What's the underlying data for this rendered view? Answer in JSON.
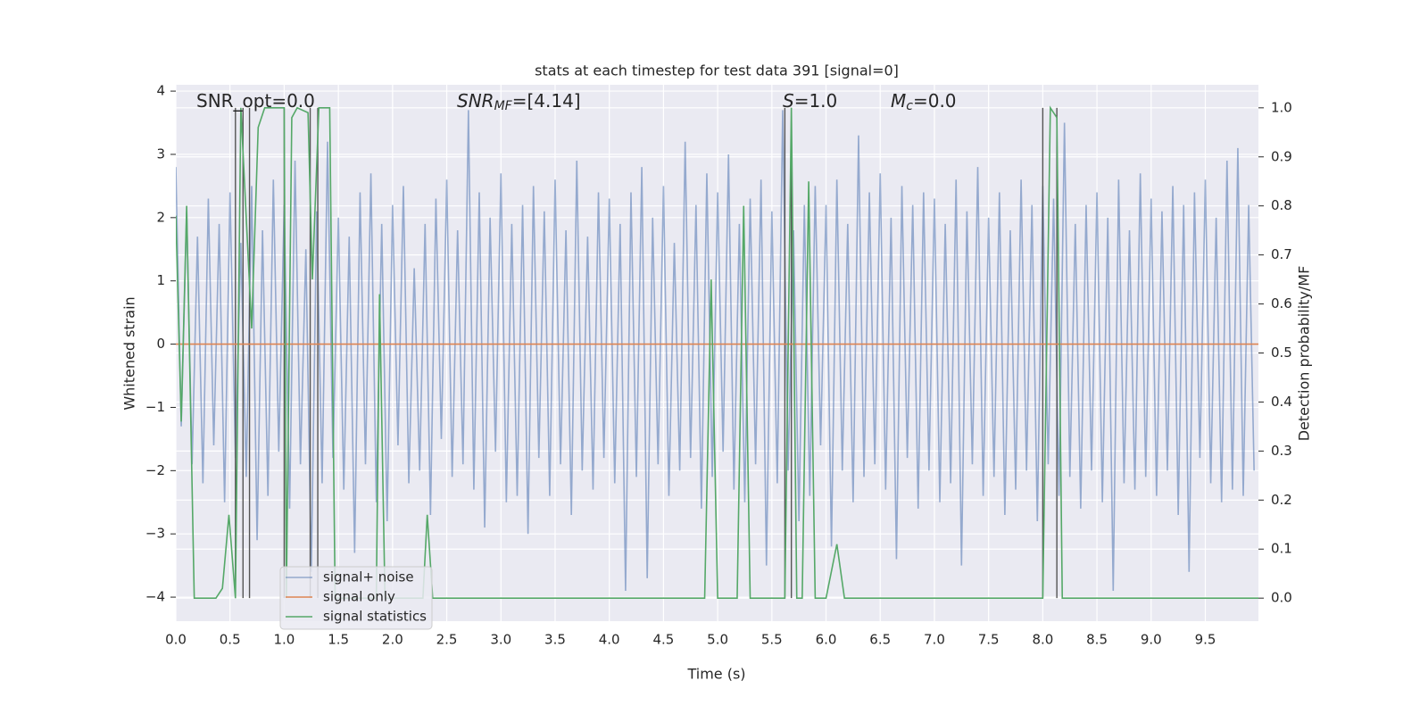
{
  "chart_data": {
    "type": "line",
    "title": "stats at each timestep for test data 391 [signal=0]",
    "xlabel": "Time (s)",
    "ylabel": "Whitened strain",
    "y2label": "Detection probability/MF",
    "xlim": [
      0,
      9.99
    ],
    "ylim": [
      -4.38,
      4.1
    ],
    "y2lim": [
      -0.047,
      1.047
    ],
    "xticks": [
      {
        "value": 0,
        "label": "0.0"
      },
      0.5,
      {
        "value": 1,
        "label": "1.0"
      },
      1.5,
      {
        "value": 2,
        "label": "2.0"
      },
      2.5,
      {
        "value": 3,
        "label": "3.0"
      },
      3.5,
      {
        "value": 4,
        "label": "4.0"
      },
      4.5,
      {
        "value": 5,
        "label": "5.0"
      },
      5.5,
      {
        "value": 6,
        "label": "6.0"
      },
      6.5,
      {
        "value": 7,
        "label": "7.0"
      },
      7.5,
      {
        "value": 8,
        "label": "8.0"
      },
      8.5,
      {
        "value": 9,
        "label": "9.0"
      },
      9.5
    ],
    "yticks": [
      {
        "value": -4,
        "label": "−4"
      },
      {
        "value": -3,
        "label": "−3"
      },
      {
        "value": -2,
        "label": "−2"
      },
      {
        "value": -1,
        "label": "−1"
      },
      0,
      1,
      2,
      3,
      4
    ],
    "y2ticks": [
      {
        "value": 0,
        "label": "0.0"
      },
      0.1,
      0.2,
      0.3,
      0.4,
      0.5,
      0.6,
      0.7,
      0.8,
      0.9,
      {
        "value": 1,
        "label": "1.0"
      }
    ],
    "grid": true,
    "legend": "lower left",
    "annotations": [
      {
        "base": "SNR_opt=0.0"
      },
      {
        "base": "SNR",
        "sub": "MF",
        "rest": "=[4.14]"
      },
      {
        "base": "S",
        "rest": "=1.0"
      },
      {
        "base": "M",
        "sub": "c",
        "rest": "=0.0"
      }
    ],
    "series": [
      {
        "name": "signal+ noise",
        "color": "#4c72b0",
        "alpha": 0.55,
        "axis": "y",
        "x": [
          0,
          0.05,
          0.1,
          0.15,
          0.2,
          0.25,
          0.3,
          0.35,
          0.4,
          0.45,
          0.5,
          0.55,
          0.6,
          0.65,
          0.7,
          0.75,
          0.8,
          0.85,
          0.9,
          0.95,
          1,
          1.05,
          1.1,
          1.15,
          1.2,
          1.25,
          1.3,
          1.35,
          1.4,
          1.45,
          1.5,
          1.55,
          1.6,
          1.65,
          1.7,
          1.75,
          1.8,
          1.85,
          1.9,
          1.95,
          2,
          2.05,
          2.1,
          2.15,
          2.2,
          2.25,
          2.3,
          2.35,
          2.4,
          2.45,
          2.5,
          2.55,
          2.6,
          2.65,
          2.7,
          2.75,
          2.8,
          2.85,
          2.9,
          2.95,
          3,
          3.05,
          3.1,
          3.15,
          3.2,
          3.25,
          3.3,
          3.35,
          3.4,
          3.45,
          3.5,
          3.55,
          3.6,
          3.65,
          3.7,
          3.75,
          3.8,
          3.85,
          3.9,
          3.95,
          4,
          4.05,
          4.1,
          4.15,
          4.2,
          4.25,
          4.3,
          4.35,
          4.4,
          4.45,
          4.5,
          4.55,
          4.6,
          4.65,
          4.7,
          4.75,
          4.8,
          4.85,
          4.9,
          4.95,
          5,
          5.05,
          5.1,
          5.15,
          5.2,
          5.25,
          5.3,
          5.35,
          5.4,
          5.45,
          5.5,
          5.55,
          5.6,
          5.65,
          5.7,
          5.75,
          5.8,
          5.85,
          5.9,
          5.95,
          6,
          6.05,
          6.1,
          6.15,
          6.2,
          6.25,
          6.3,
          6.35,
          6.4,
          6.45,
          6.5,
          6.55,
          6.6,
          6.65,
          6.7,
          6.75,
          6.8,
          6.85,
          6.9,
          6.95,
          7,
          7.05,
          7.1,
          7.15,
          7.2,
          7.25,
          7.3,
          7.35,
          7.4,
          7.45,
          7.5,
          7.55,
          7.6,
          7.65,
          7.7,
          7.75,
          7.8,
          7.85,
          7.9,
          7.95,
          8,
          8.05,
          8.1,
          8.15,
          8.2,
          8.25,
          8.3,
          8.35,
          8.4,
          8.45,
          8.5,
          8.55,
          8.6,
          8.65,
          8.7,
          8.75,
          8.8,
          8.85,
          8.9,
          8.95,
          9,
          9.05,
          9.1,
          9.15,
          9.2,
          9.25,
          9.3,
          9.35,
          9.4,
          9.45,
          9.5,
          9.55,
          9.6,
          9.65,
          9.7,
          9.75,
          9.8,
          9.85,
          9.9,
          9.95
        ],
        "values": [
          2.8,
          -1.3,
          2.1,
          -1.9,
          1.7,
          -2.2,
          2.3,
          -1.6,
          1.9,
          -2.5,
          2.4,
          -1.8,
          1.6,
          -2.1,
          2.5,
          -3.1,
          1.8,
          -2.4,
          2.6,
          -1.7,
          2.2,
          -2.6,
          2.9,
          -1.9,
          1.5,
          -3.6,
          2.1,
          -2.2,
          3.2,
          -1.8,
          2.0,
          -2.3,
          1.7,
          -3.3,
          2.4,
          -1.9,
          2.7,
          -2.5,
          1.9,
          -2.8,
          2.2,
          -1.6,
          2.5,
          -2.2,
          1.2,
          -2.0,
          1.9,
          -2.7,
          2.3,
          -1.5,
          2.6,
          -2.1,
          1.8,
          -1.9,
          3.7,
          -2.3,
          2.4,
          -2.9,
          2.0,
          -1.7,
          2.7,
          -2.5,
          1.9,
          -2.4,
          2.2,
          -3.0,
          2.5,
          -1.8,
          2.1,
          -2.4,
          2.6,
          -1.9,
          1.8,
          -2.7,
          2.9,
          -2.0,
          1.7,
          -2.3,
          2.4,
          -1.8,
          2.3,
          -2.2,
          1.9,
          -3.9,
          2.4,
          -2.1,
          2.8,
          -3.7,
          2.0,
          -1.9,
          2.5,
          -2.4,
          1.6,
          -2.0,
          3.2,
          -1.8,
          2.2,
          -2.6,
          2.7,
          -2.1,
          2.4,
          -1.7,
          3.0,
          -2.3,
          1.9,
          -2.5,
          2.3,
          -1.9,
          2.6,
          -3.5,
          2.1,
          -2.2,
          3.7,
          -2.0,
          1.8,
          -2.8,
          2.2,
          -2.4,
          2.5,
          -1.6,
          2.2,
          -3.2,
          2.6,
          -2.0,
          1.9,
          -2.5,
          3.3,
          -2.1,
          2.4,
          -1.9,
          2.7,
          -2.3,
          2.0,
          -3.4,
          2.5,
          -1.8,
          2.2,
          -2.6,
          2.4,
          -2.0,
          2.3,
          -2.5,
          1.9,
          -2.2,
          2.6,
          -3.5,
          2.1,
          -1.9,
          2.8,
          -2.4,
          2.0,
          -2.1,
          2.4,
          -2.7,
          1.8,
          -2.3,
          2.6,
          -2.0,
          2.2,
          -2.8,
          2.5,
          -1.9,
          2.3,
          -2.4,
          3.5,
          -2.1,
          1.9,
          -2.6,
          2.2,
          -2.0,
          2.4,
          -2.5,
          2.0,
          -3.9,
          2.6,
          -2.2,
          1.8,
          -2.3,
          2.7,
          -2.1,
          2.3,
          -2.4,
          2.1,
          -2.0,
          2.5,
          -2.7,
          2.2,
          -3.6,
          2.4,
          -1.8,
          2.6,
          -2.2,
          2.0,
          -2.5,
          2.9,
          -2.3,
          3.1,
          -2.4,
          2.2,
          -2.0
        ]
      },
      {
        "name": "signal only",
        "color": "#dd8452",
        "alpha": 1,
        "axis": "y",
        "x": [
          0,
          9.99
        ],
        "values": [
          0,
          0
        ]
      },
      {
        "name": "signal statistics",
        "color": "#55a868",
        "alpha": 1,
        "axis": "y2",
        "x": [
          0,
          0.05,
          0.1,
          0.17,
          0.37,
          0.43,
          0.49,
          0.55,
          0.6,
          0.7,
          0.76,
          0.82,
          1,
          1.02,
          1.07,
          1.12,
          1.22,
          1.26,
          1.32,
          1.42,
          1.47,
          1.85,
          1.88,
          1.93,
          2.28,
          2.32,
          2.37,
          4.88,
          4.94,
          5,
          5.18,
          5.24,
          5.3,
          5.55,
          5.62,
          5.68,
          5.73,
          5.78,
          5.84,
          5.9,
          6,
          6.1,
          6.17,
          8,
          8.07,
          8.13,
          8.18,
          9.99
        ],
        "values": [
          0.78,
          0.36,
          0.8,
          0,
          0,
          0.02,
          0.17,
          0,
          1,
          0.55,
          0.96,
          1,
          1,
          0,
          0.98,
          1,
          0.99,
          0.65,
          1,
          1,
          0,
          0,
          0.62,
          0,
          0,
          0.17,
          0,
          0,
          0.65,
          0,
          0,
          0.8,
          0,
          0,
          0,
          1,
          0,
          0,
          0.85,
          0,
          0,
          0.11,
          0,
          0,
          1,
          0.98,
          0,
          0
        ]
      }
    ],
    "vlines": {
      "color": "#555555",
      "x": [
        0.55,
        0.62,
        0.68,
        1.0,
        1.24,
        1.31,
        5.62,
        5.68,
        8.0,
        8.13
      ],
      "ymin": 0,
      "ymax": 1,
      "axis": "y2"
    }
  }
}
